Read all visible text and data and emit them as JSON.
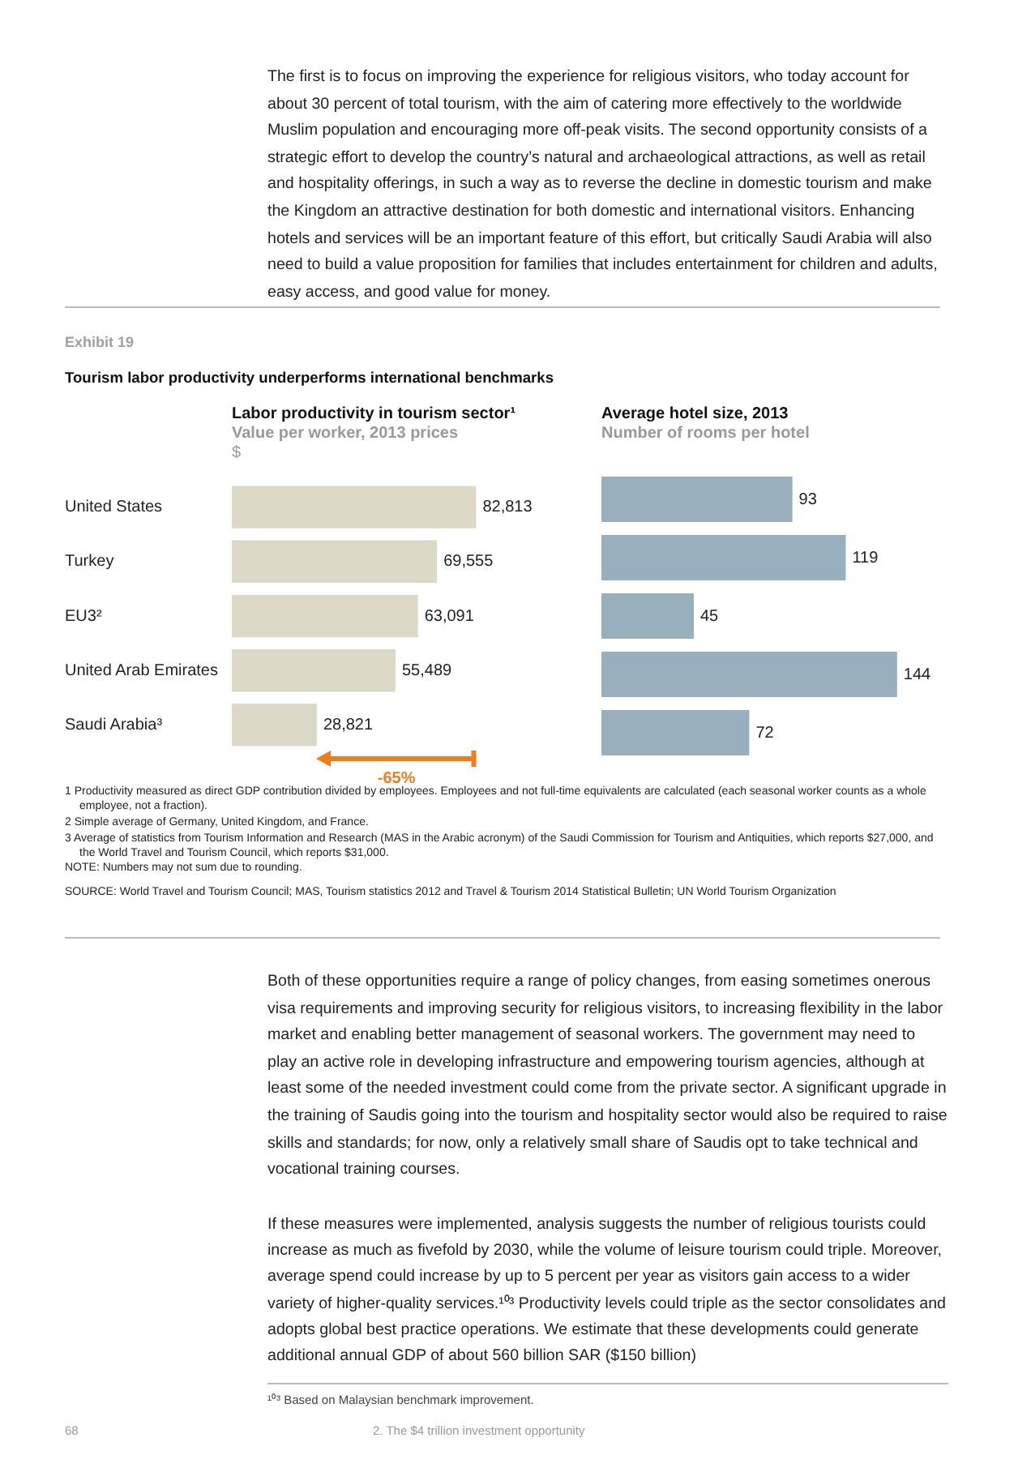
{
  "chart_data": [
    {
      "type": "bar",
      "orientation": "horizontal",
      "title": "Labor productivity in tourism sector¹",
      "subtitle": "Value per worker, 2013 prices",
      "xlabel": "$",
      "categories": [
        "United States",
        "Turkey",
        "EU3²",
        "United Arab Emirates",
        "Saudi Arabia³"
      ],
      "values": [
        82813,
        69555,
        63091,
        55489,
        28821
      ],
      "value_labels": [
        "82,813",
        "69,555",
        "63,091",
        "55,489",
        "28,821"
      ],
      "color": "#dcd9c6",
      "tick_labels": "y",
      "annotations": [
        "The first is to focus on improving the experience for religious visitors, who today account for about 30 percent of total tourism, with the aim of catering more effectively to the worldwide Muslim population and encouraging more off-peak visits. The second opportunity consists of a strategic effort to develop the country’s natural and archaeological attractions, as well as retail and hospitality offerings, in such a way as to reverse the decline in domestic tourism and make the Kingdom an attractive destination for both domestic and international visitors. Enhancing hotels and services will be an important feature of this effort, but critically Saudi Arabia will also need to build a value proposition for families that includes entertainment for children and adults, easy access, and good value for money.",
        "Exhibit 19",
        "Tourism labor productivity  underperforms international benchmarks",
        "-65%",
        "1  Productivity measured as direct GDP contribution divided by employees. Employees and not full-time equivalents are calculated (each seasonal worker counts as a whole employee, not a fraction).",
        "2  Simple average of Germany, United Kingdom, and France.",
        "3  Average of statistics from Tourism Information and Research (MAS in the Arabic acronym) of the Saudi Commission for Tourism and Antiquities, which reports $27,000, and the World Travel and Tourism Council, which reports $31,000.",
        "NOTE: Numbers may not sum due to rounding.",
        "SOURCE:  World Travel and Tourism Council; MAS, Tourism statistics 2012 and Travel & Tourism 2014 Statistical Bulletin; UN World Tourism Organization",
        "Both of these opportunities require a range of policy changes, from easing sometimes onerous visa requirements and improving security for religious visitors, to increasing flexibility in the labor market and enabling better management of seasonal workers. The government may need to play an active role in developing infrastructure and empowering tourism agencies, although at least some of the needed investment could come from the private sector. A significant upgrade in the training of Saudis going into the tourism and hospitality sector would also be required to raise skills and standards; for now, only a relatively small share of Saudis opt to take technical and vocational training courses.",
        "If these measures were implemented, analysis suggests the number of religious tourists could increase as much as fivefold by 2030, while the volume of leisure tourism could triple. Moreover, average spend could increase by up to 5 percent per year as visitors gain access to a wider variety of higher-quality services.¹⁰³ Productivity levels could triple as the sector consolidates and adopts global best practice operations. We estimate that these developments could generate additional annual GDP of about 560 billion SAR ($150 billion)",
        "¹⁰³  Based on Malaysian benchmark improvement.",
        "68",
        "2. The $4 trillion investment opportunity"
      ]
    },
    {
      "type": "bar",
      "orientation": "horizontal",
      "title": "Average hotel size, 2013",
      "subtitle": "Number of rooms per hotel",
      "categories": [
        null,
        null,
        null,
        null,
        null
      ],
      "values": [
        93,
        119,
        45,
        144,
        72
      ],
      "color": "#98afbd",
      "data_labels": true,
      "tick_labels": false
    }
  ]
}
